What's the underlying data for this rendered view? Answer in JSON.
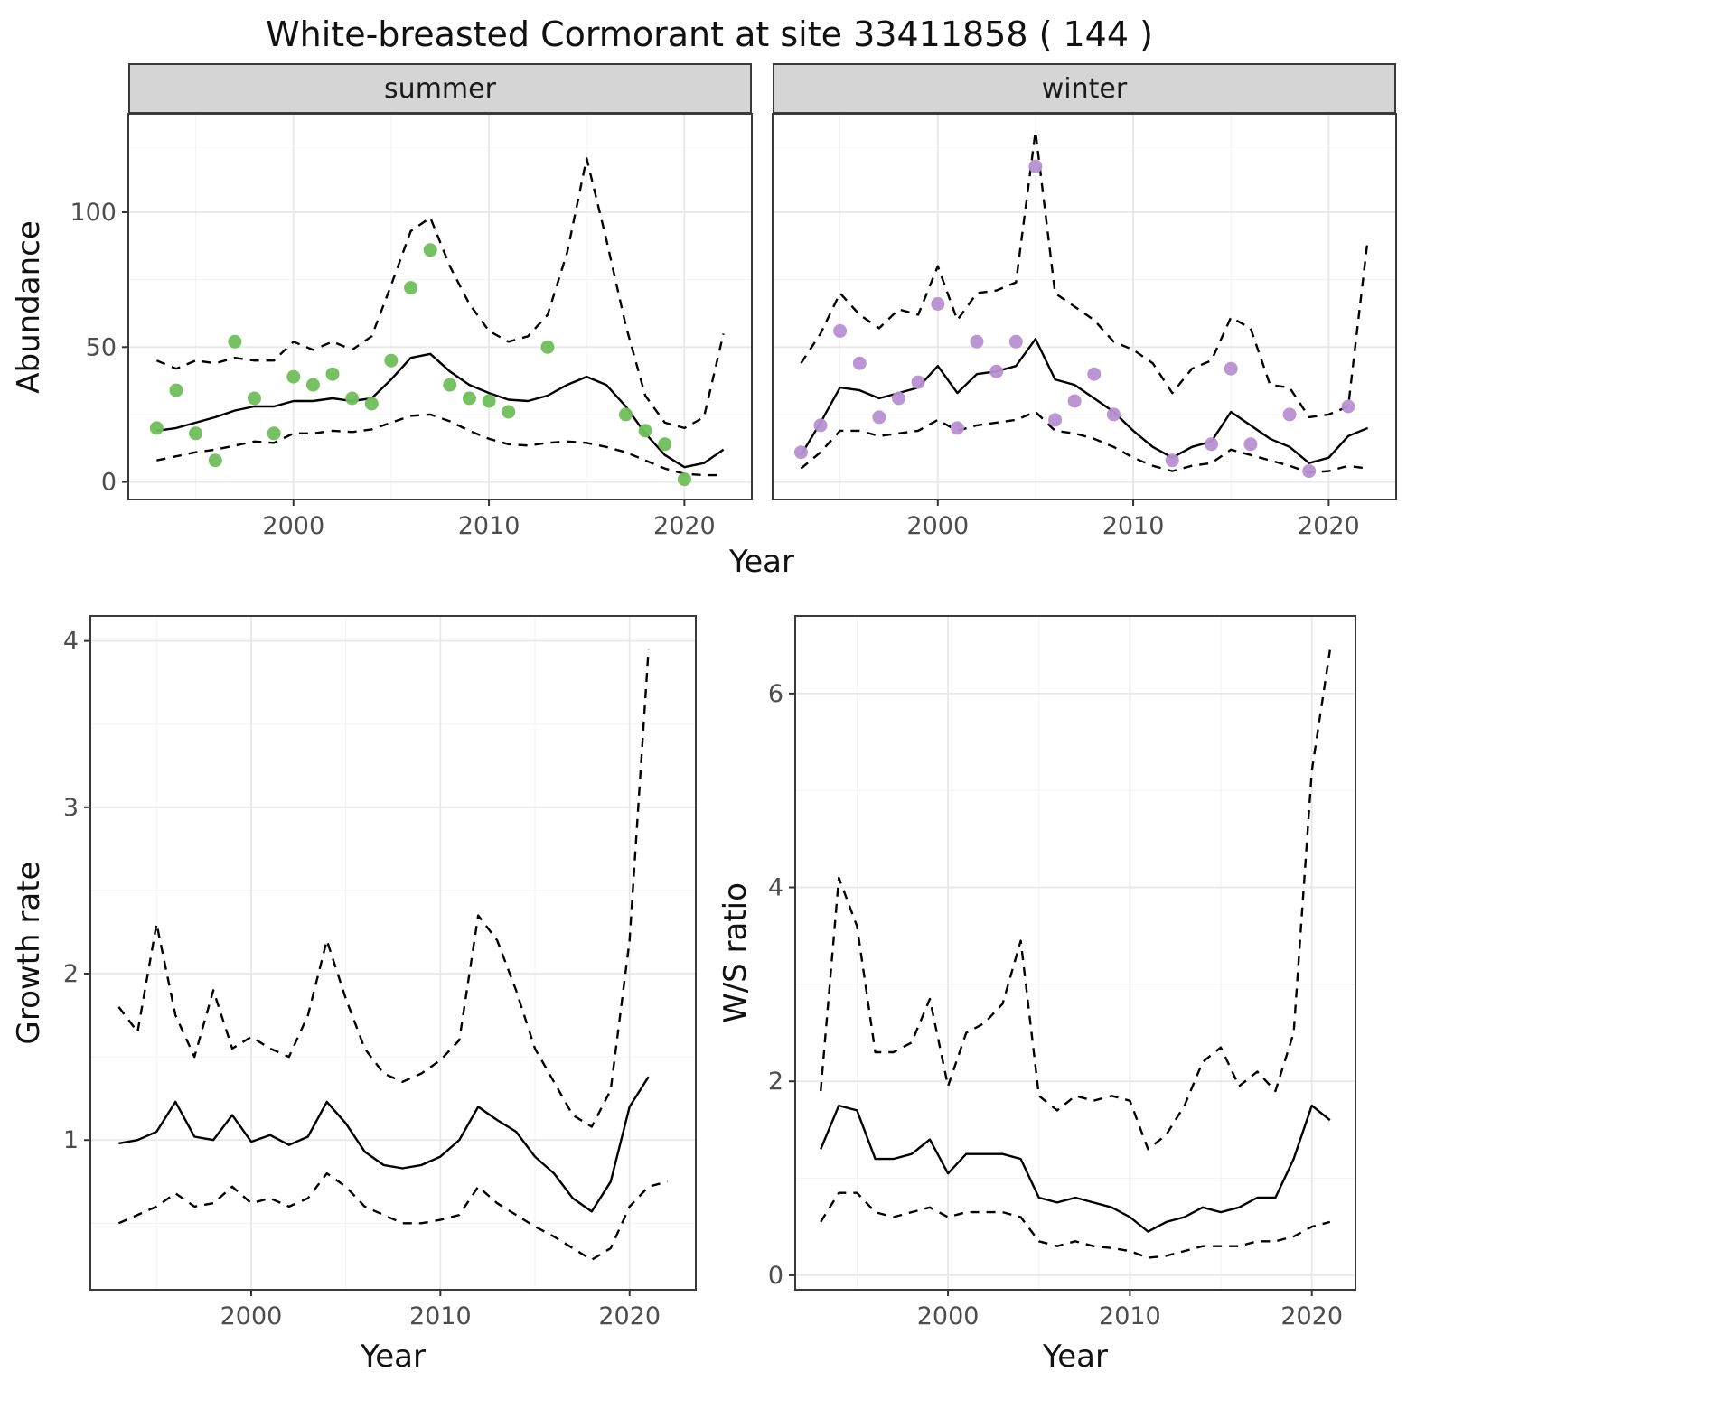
{
  "title": "White-breasted Cormorant at site 33411858 ( 144 )",
  "chart_data": [
    {
      "id": "abundance-summer",
      "type": "line",
      "facet_label": "summer",
      "xlabel": "Year",
      "ylabel": "Abundance",
      "xlim": [
        1991.55,
        2023.45
      ],
      "ylim": [
        -6.5,
        136.5
      ],
      "xticks": [
        2000,
        2010,
        2020
      ],
      "yticks": [
        0,
        50,
        100
      ],
      "xminor": [
        1995,
        2005,
        2015
      ],
      "yminor": [
        25,
        75,
        125
      ],
      "show_y_labels": true,
      "point_color": "#6fbe5a",
      "line_color": "#000000",
      "grid": "on",
      "legend": "none",
      "points": {
        "x": [
          1993,
          1994,
          1995,
          1996,
          1997,
          1998,
          1999,
          2000,
          2001,
          2002,
          2003,
          2004,
          2005,
          2006,
          2007,
          2008,
          2009,
          2010,
          2011,
          2013,
          2017,
          2018,
          2019,
          2020
        ],
        "y": [
          20,
          34,
          18,
          8,
          52,
          31,
          18,
          39,
          36,
          40,
          31,
          29,
          45,
          72,
          86,
          36,
          31,
          30,
          26,
          50,
          25,
          19,
          14,
          1
        ]
      },
      "series": [
        {
          "name": "fit",
          "style": "solid",
          "x": [
            1993,
            1994,
            1995,
            1996,
            1997,
            1998,
            1999,
            2000,
            2001,
            2002,
            2003,
            2004,
            2005,
            2006,
            2007,
            2008,
            2009,
            2010,
            2011,
            2012,
            2013,
            2014,
            2015,
            2016,
            2017,
            2018,
            2019,
            2020,
            2021,
            2022
          ],
          "y": [
            19,
            20,
            22,
            24,
            26.5,
            28,
            28,
            30,
            30,
            31,
            30,
            31,
            38,
            46,
            47.5,
            41,
            36,
            33,
            30.5,
            30,
            32,
            36,
            39,
            36,
            28,
            18,
            10,
            5.5,
            7,
            12
          ]
        },
        {
          "name": "upper-ci",
          "style": "dashed",
          "x": [
            1993,
            1994,
            1995,
            1996,
            1997,
            1998,
            1999,
            2000,
            2001,
            2002,
            2003,
            2004,
            2005,
            2006,
            2007,
            2008,
            2009,
            2010,
            2011,
            2012,
            2013,
            2014,
            2015,
            2016,
            2017,
            2018,
            2019,
            2020,
            2021,
            2022
          ],
          "y": [
            45,
            42,
            45,
            44,
            46,
            45,
            45,
            52,
            49,
            52,
            49,
            54,
            73,
            93,
            98,
            80,
            66,
            56,
            52,
            54,
            62,
            85,
            120,
            90,
            58,
            32,
            22,
            20,
            24,
            55
          ]
        },
        {
          "name": "lower-ci",
          "style": "dashed",
          "x": [
            1993,
            1994,
            1995,
            1996,
            1997,
            1998,
            1999,
            2000,
            2001,
            2002,
            2003,
            2004,
            2005,
            2006,
            2007,
            2008,
            2009,
            2010,
            2011,
            2012,
            2013,
            2014,
            2015,
            2016,
            2017,
            2018,
            2019,
            2020,
            2021,
            2022
          ],
          "y": [
            8,
            9.5,
            11,
            12,
            13.5,
            15,
            14.5,
            18,
            18,
            19,
            18.5,
            19.5,
            22,
            24.5,
            25,
            22.5,
            19,
            16,
            14,
            13.5,
            14.5,
            15,
            14.5,
            13,
            11,
            8,
            5,
            3,
            2.5,
            2.5
          ]
        }
      ]
    },
    {
      "id": "abundance-winter",
      "type": "line",
      "facet_label": "winter",
      "xlabel": "Year",
      "ylabel": "Abundance",
      "xlim": [
        1991.55,
        2023.45
      ],
      "ylim": [
        -6.5,
        136.5
      ],
      "xticks": [
        2000,
        2010,
        2020
      ],
      "yticks": [
        0,
        50,
        100
      ],
      "xminor": [
        1995,
        2005,
        2015
      ],
      "yminor": [
        25,
        75,
        125
      ],
      "show_y_labels": false,
      "point_color": "#b890d2",
      "line_color": "#000000",
      "grid": "on",
      "legend": "none",
      "points": {
        "x": [
          1993,
          1994,
          1995,
          1996,
          1997,
          1998,
          1999,
          2000,
          2001,
          2002,
          2003,
          2004,
          2005,
          2006,
          2007,
          2008,
          2009,
          2012,
          2014,
          2015,
          2016,
          2018,
          2019,
          2021
        ],
        "y": [
          11,
          21,
          56,
          44,
          24,
          31,
          37,
          66,
          20,
          52,
          41,
          52,
          117,
          23,
          30,
          40,
          25,
          8,
          14,
          42,
          14,
          25,
          4,
          28
        ]
      },
      "series": [
        {
          "name": "fit",
          "style": "solid",
          "x": [
            1993,
            1994,
            1995,
            1996,
            1997,
            1998,
            1999,
            2000,
            2001,
            2002,
            2003,
            2004,
            2005,
            2006,
            2007,
            2008,
            2009,
            2010,
            2011,
            2012,
            2013,
            2014,
            2015,
            2016,
            2017,
            2018,
            2019,
            2020,
            2021,
            2022
          ],
          "y": [
            10,
            22,
            35,
            34,
            31,
            33,
            35,
            43,
            33,
            40,
            41,
            43,
            53,
            38,
            36,
            31,
            26,
            19,
            13,
            9,
            13,
            15,
            26,
            21,
            16,
            13,
            7,
            9,
            17,
            20
          ]
        },
        {
          "name": "upper-ci",
          "style": "dashed",
          "x": [
            1993,
            1994,
            1995,
            1996,
            1997,
            1998,
            1999,
            2000,
            2001,
            2002,
            2003,
            2004,
            2005,
            2006,
            2007,
            2008,
            2009,
            2010,
            2011,
            2012,
            2013,
            2014,
            2015,
            2016,
            2017,
            2018,
            2019,
            2020,
            2021,
            2022
          ],
          "y": [
            44,
            55,
            70,
            62,
            57,
            64,
            62,
            80,
            60,
            70,
            71,
            74,
            130,
            70,
            65,
            60,
            52,
            49,
            44,
            33,
            42,
            45,
            61,
            57,
            36,
            35,
            24,
            25,
            28,
            90
          ]
        },
        {
          "name": "lower-ci",
          "style": "dashed",
          "x": [
            1993,
            1994,
            1995,
            1996,
            1997,
            1998,
            1999,
            2000,
            2001,
            2002,
            2003,
            2004,
            2005,
            2006,
            2007,
            2008,
            2009,
            2010,
            2011,
            2012,
            2013,
            2014,
            2015,
            2016,
            2017,
            2018,
            2019,
            2020,
            2021,
            2022
          ],
          "y": [
            5,
            11,
            19,
            19,
            17,
            18,
            19,
            23,
            19,
            21,
            22,
            23,
            26,
            19,
            18,
            16,
            13,
            9,
            6,
            4,
            6,
            7,
            12,
            10,
            8,
            6,
            3.5,
            4,
            6,
            5
          ]
        }
      ]
    },
    {
      "id": "growth-rate",
      "type": "line",
      "facet_label": "",
      "xlabel": "Year",
      "ylabel": "Growth rate",
      "xlim": [
        1991.5,
        2023.5
      ],
      "ylim": [
        0.1,
        4.15
      ],
      "xticks": [
        2000,
        2010,
        2020
      ],
      "yticks": [
        1,
        2,
        3,
        4
      ],
      "xminor": [
        1995,
        2005,
        2015
      ],
      "yminor": [
        0.5,
        1.5,
        2.5,
        3.5
      ],
      "show_y_labels": true,
      "point_color": null,
      "line_color": "#000000",
      "grid": "on",
      "legend": "none",
      "points": null,
      "series": [
        {
          "name": "fit",
          "style": "solid",
          "x": [
            1993,
            1994,
            1995,
            1996,
            1997,
            1998,
            1999,
            2000,
            2001,
            2002,
            2003,
            2004,
            2005,
            2006,
            2007,
            2008,
            2009,
            2010,
            2011,
            2012,
            2013,
            2014,
            2015,
            2016,
            2017,
            2018,
            2019,
            2020,
            2021
          ],
          "y": [
            0.98,
            1.0,
            1.05,
            1.23,
            1.02,
            1.0,
            1.15,
            0.99,
            1.03,
            0.97,
            1.02,
            1.23,
            1.1,
            0.93,
            0.85,
            0.83,
            0.85,
            0.9,
            1.0,
            1.2,
            1.12,
            1.05,
            0.9,
            0.8,
            0.65,
            0.57,
            0.75,
            1.2,
            1.38
          ]
        },
        {
          "name": "upper-ci",
          "style": "dashed",
          "x": [
            1993,
            1994,
            1995,
            1996,
            1997,
            1998,
            1999,
            2000,
            2001,
            2002,
            2003,
            2004,
            2005,
            2006,
            2007,
            2008,
            2009,
            2010,
            2011,
            2012,
            2013,
            2014,
            2015,
            2016,
            2017,
            2018,
            2019,
            2020,
            2021
          ],
          "y": [
            1.8,
            1.65,
            2.3,
            1.75,
            1.5,
            1.9,
            1.55,
            1.62,
            1.55,
            1.5,
            1.75,
            2.2,
            1.85,
            1.55,
            1.4,
            1.35,
            1.4,
            1.48,
            1.6,
            2.35,
            2.2,
            1.9,
            1.55,
            1.35,
            1.15,
            1.08,
            1.3,
            2.2,
            3.95
          ]
        },
        {
          "name": "lower-ci",
          "style": "dashed",
          "x": [
            1993,
            1994,
            1995,
            1996,
            1997,
            1998,
            1999,
            2000,
            2001,
            2002,
            2003,
            2004,
            2005,
            2006,
            2007,
            2008,
            2009,
            2010,
            2011,
            2012,
            2013,
            2014,
            2015,
            2016,
            2017,
            2018,
            2019,
            2020,
            2021,
            2022
          ],
          "y": [
            0.5,
            0.55,
            0.6,
            0.68,
            0.6,
            0.62,
            0.72,
            0.62,
            0.65,
            0.6,
            0.65,
            0.8,
            0.72,
            0.6,
            0.55,
            0.5,
            0.5,
            0.52,
            0.55,
            0.72,
            0.62,
            0.55,
            0.48,
            0.42,
            0.35,
            0.28,
            0.35,
            0.6,
            0.72,
            0.75
          ]
        }
      ]
    },
    {
      "id": "ws-ratio",
      "type": "line",
      "facet_label": "",
      "xlabel": "Year",
      "ylabel": "W/S ratio",
      "xlim": [
        1991.6,
        2022.4
      ],
      "ylim": [
        -0.15,
        6.8
      ],
      "xticks": [
        2000,
        2010,
        2020
      ],
      "yticks": [
        0,
        2,
        4,
        6
      ],
      "xminor": [
        1995,
        2005,
        2015
      ],
      "yminor": [
        1,
        3,
        5
      ],
      "show_y_labels": true,
      "point_color": null,
      "line_color": "#000000",
      "grid": "on",
      "legend": "none",
      "points": null,
      "series": [
        {
          "name": "fit",
          "style": "solid",
          "x": [
            1993,
            1994,
            1995,
            1996,
            1997,
            1998,
            1999,
            2000,
            2001,
            2002,
            2003,
            2004,
            2005,
            2006,
            2007,
            2008,
            2009,
            2010,
            2011,
            2012,
            2013,
            2014,
            2015,
            2016,
            2017,
            2018,
            2019,
            2020,
            2021
          ],
          "y": [
            1.3,
            1.75,
            1.7,
            1.2,
            1.2,
            1.25,
            1.4,
            1.05,
            1.25,
            1.25,
            1.25,
            1.2,
            0.8,
            0.75,
            0.8,
            0.75,
            0.7,
            0.6,
            0.45,
            0.55,
            0.6,
            0.7,
            0.65,
            0.7,
            0.8,
            0.8,
            1.2,
            1.75,
            1.6
          ]
        },
        {
          "name": "upper-ci",
          "style": "dashed",
          "x": [
            1993,
            1994,
            1995,
            1996,
            1997,
            1998,
            1999,
            2000,
            2001,
            2002,
            2003,
            2004,
            2005,
            2006,
            2007,
            2008,
            2009,
            2010,
            2011,
            2012,
            2013,
            2014,
            2015,
            2016,
            2017,
            2018,
            2019,
            2020,
            2021
          ],
          "y": [
            1.9,
            4.1,
            3.6,
            2.3,
            2.3,
            2.4,
            2.85,
            1.95,
            2.5,
            2.6,
            2.8,
            3.45,
            1.85,
            1.7,
            1.85,
            1.8,
            1.85,
            1.8,
            1.3,
            1.45,
            1.75,
            2.2,
            2.35,
            1.95,
            2.1,
            1.9,
            2.5,
            5.2,
            6.45
          ]
        },
        {
          "name": "lower-ci",
          "style": "dashed",
          "x": [
            1993,
            1994,
            1995,
            1996,
            1997,
            1998,
            1999,
            2000,
            2001,
            2002,
            2003,
            2004,
            2005,
            2006,
            2007,
            2008,
            2009,
            2010,
            2011,
            2012,
            2013,
            2014,
            2015,
            2016,
            2017,
            2018,
            2019,
            2020,
            2021
          ],
          "y": [
            0.55,
            0.85,
            0.85,
            0.65,
            0.6,
            0.65,
            0.7,
            0.6,
            0.65,
            0.65,
            0.65,
            0.6,
            0.35,
            0.3,
            0.35,
            0.3,
            0.28,
            0.25,
            0.18,
            0.2,
            0.25,
            0.3,
            0.3,
            0.3,
            0.35,
            0.35,
            0.4,
            0.5,
            0.55
          ]
        }
      ]
    }
  ]
}
